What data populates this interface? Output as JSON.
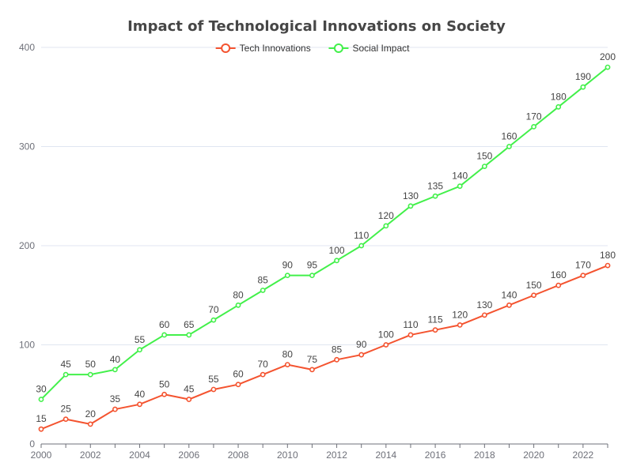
{
  "chart_data": {
    "type": "line",
    "title": "Impact of Technological Innovations on Society",
    "x": [
      2000,
      2001,
      2002,
      2003,
      2004,
      2005,
      2006,
      2007,
      2008,
      2009,
      2010,
      2011,
      2012,
      2013,
      2014,
      2015,
      2016,
      2017,
      2018,
      2019,
      2020,
      2021,
      2022,
      2023
    ],
    "x_tick_labels": [
      "2000",
      "2002",
      "2004",
      "2006",
      "2008",
      "2010",
      "2012",
      "2014",
      "2016",
      "2018",
      "2020",
      "2022"
    ],
    "xlim": [
      2000,
      2023
    ],
    "ylim": [
      0,
      400
    ],
    "y_ticks": [
      0,
      100,
      200,
      300,
      400
    ],
    "grid": true,
    "legend_position": "top-center",
    "series": [
      {
        "name": "Tech Innovations",
        "color": "#f4532f",
        "values": [
          15,
          25,
          20,
          35,
          40,
          50,
          45,
          55,
          60,
          70,
          80,
          75,
          85,
          90,
          100,
          110,
          115,
          120,
          130,
          140,
          150,
          160,
          170,
          180
        ]
      },
      {
        "name": "Social Impact",
        "color": "#42f04a",
        "values": [
          45,
          70,
          70,
          75,
          95,
          110,
          110,
          125,
          140,
          155,
          170,
          170,
          185,
          200,
          220,
          240,
          250,
          260,
          280,
          300,
          320,
          340,
          360,
          380
        ],
        "labels": [
          30,
          45,
          50,
          40,
          55,
          60,
          65,
          70,
          80,
          85,
          90,
          95,
          100,
          110,
          120,
          130,
          135,
          140,
          150,
          160,
          170,
          180,
          190,
          200
        ]
      }
    ]
  }
}
